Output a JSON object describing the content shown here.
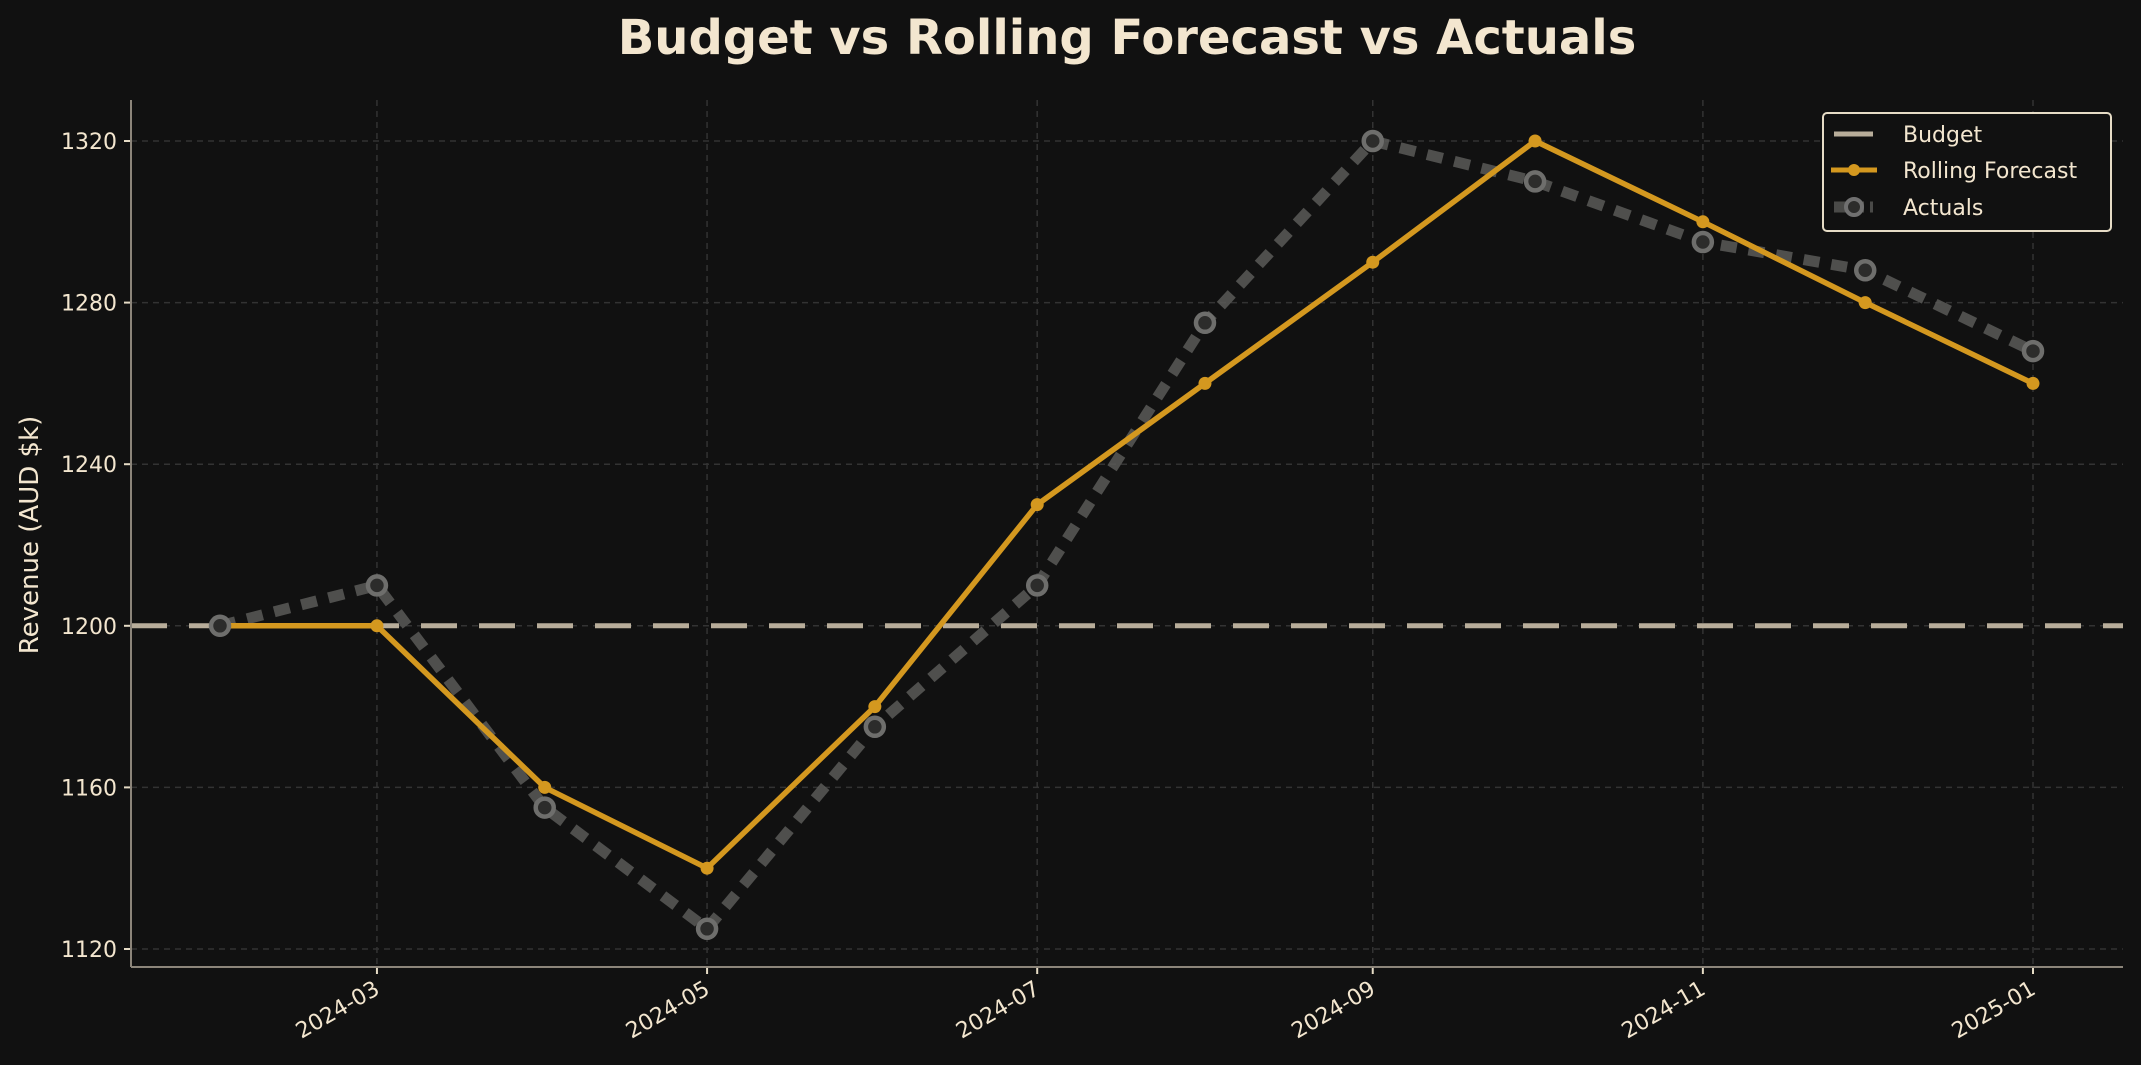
{
  "chart_data": {
    "type": "line",
    "title": "Budget vs Rolling Forecast vs Actuals",
    "xlabel": "",
    "ylabel": "Revenue (AUD $k)",
    "x": [
      "2024-02-01",
      "2024-03-01",
      "2024-04-01",
      "2024-05-01",
      "2024-06-01",
      "2024-07-01",
      "2024-08-01",
      "2024-09-01",
      "2024-10-01",
      "2024-11-01",
      "2024-12-01",
      "2025-01-01"
    ],
    "x_ticks": [
      "2024-03",
      "2024-05",
      "2024-07",
      "2024-09",
      "2024-11",
      "2025-01"
    ],
    "y_ticks": [
      1120,
      1160,
      1200,
      1240,
      1280,
      1320
    ],
    "ylim": [
      1115,
      1330
    ],
    "grid": true,
    "legend_position": "top-right",
    "series": [
      {
        "name": "Budget",
        "color": "#b8ad9a",
        "style": "dashed",
        "values": [
          1200,
          1200,
          1200,
          1200,
          1200,
          1200,
          1200,
          1200,
          1200,
          1200,
          1200,
          1200
        ]
      },
      {
        "name": "Rolling Forecast",
        "color": "#d4981f",
        "style": "solid-markers",
        "values": [
          1200,
          1200,
          1160,
          1140,
          1180,
          1230,
          1260,
          1290,
          1320,
          1300,
          1280,
          1260
        ]
      },
      {
        "name": "Actuals",
        "color": "#4a4a48",
        "style": "dashed-ring-markers",
        "values": [
          1200,
          1210,
          1155,
          1125,
          1175,
          1210,
          1275,
          1320,
          1310,
          1295,
          1288,
          1268
        ]
      }
    ]
  }
}
